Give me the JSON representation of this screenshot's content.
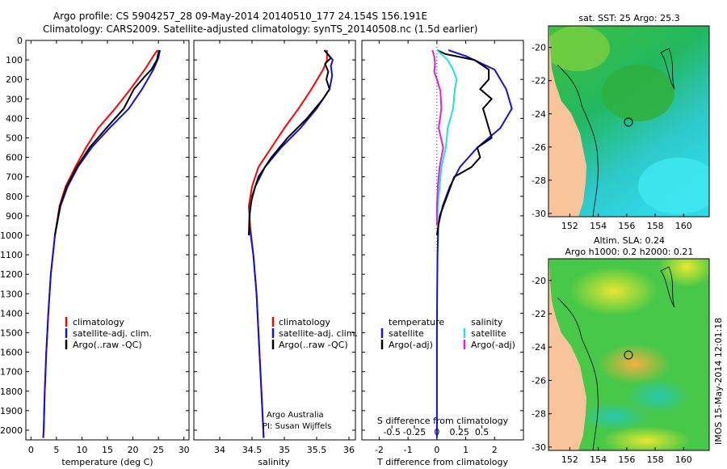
{
  "header": {
    "line1": "Argo profile: CS 5904257_28 09-May-2014 20140510_177 24.154S 156.191E",
    "line2": "Climatology: CARS2009. Satellite-adjusted climatology: synTS_20140508.nc (1.5d earlier)"
  },
  "colors": {
    "climatology": "#ff0000",
    "satellite": "#1010e0",
    "argo": "#000000",
    "argo_s": "#e020e0",
    "sat_s": "#20e0e0",
    "land": "#f9c49a"
  },
  "chart_data": [
    {
      "id": "temperature",
      "type": "line",
      "xlabel": "temperature (deg C)",
      "xlim": [
        -1,
        31
      ],
      "ylim": [
        2050,
        0
      ],
      "xticks": [
        0,
        5,
        10,
        15,
        20,
        25,
        30
      ],
      "xtick_labels": [
        "0",
        "5",
        "10",
        "15",
        "20",
        "25",
        "30"
      ],
      "yticks": [
        0,
        100,
        200,
        300,
        400,
        500,
        600,
        700,
        800,
        900,
        1000,
        1100,
        1200,
        1300,
        1400,
        1500,
        1600,
        1700,
        1800,
        1900,
        2000
      ],
      "ytick_labels": [
        "0",
        "100",
        "200",
        "300",
        "400",
        "500",
        "600",
        "700",
        "800",
        "900",
        "1000",
        "1100",
        "1200",
        "1300",
        "1400",
        "1500",
        "1600",
        "1700",
        "1800",
        "1900",
        "2000"
      ],
      "legend": [
        "climatology",
        "satellite-adj. clim.",
        "Argo(..raw -QC)"
      ],
      "series": [
        {
          "name": "climatology",
          "color": "#ff0000",
          "depth": [
            50,
            80,
            150,
            250,
            350,
            450,
            550,
            650,
            750,
            850,
            1000,
            1200,
            1400,
            1600,
            1800,
            2000,
            2040
          ],
          "value": [
            24.8,
            24.0,
            22.3,
            19.5,
            16.5,
            13.2,
            10.8,
            8.7,
            6.8,
            5.6,
            4.7,
            3.9,
            3.4,
            3.0,
            2.7,
            2.5,
            2.4
          ]
        },
        {
          "name": "satellite-adj. clim.",
          "color": "#1010e0",
          "depth": [
            50,
            90,
            150,
            250,
            350,
            450,
            550,
            650,
            750,
            850,
            1000,
            1200,
            1400,
            1600,
            1800,
            2000,
            2040
          ],
          "value": [
            25.3,
            25.0,
            24.0,
            21.8,
            19.2,
            15.4,
            11.9,
            9.2,
            7.2,
            5.8,
            4.7,
            3.9,
            3.4,
            3.0,
            2.7,
            2.5,
            2.4
          ]
        },
        {
          "name": "Argo(..raw -QC)",
          "color": "#000000",
          "depth": [
            50,
            100,
            150,
            180,
            250,
            350,
            450,
            550,
            650,
            750,
            850,
            1000
          ],
          "value": [
            25.1,
            24.7,
            23.6,
            22.5,
            20.2,
            18.2,
            14.8,
            11.5,
            9.0,
            7.0,
            5.7,
            4.7
          ]
        }
      ]
    },
    {
      "id": "salinity",
      "type": "line",
      "xlabel": "salinity",
      "xlim": [
        33.6,
        36.1
      ],
      "ylim": [
        2050,
        0
      ],
      "xticks": [
        34,
        34.5,
        35,
        35.5,
        36
      ],
      "xtick_labels": [
        "34",
        "34.5",
        "35",
        "35.5",
        "36"
      ],
      "legend": [
        "climatology",
        "satellite-adj. clim.",
        "Argo(..raw -QC)"
      ],
      "annotation": [
        "Argo Australia",
        "PI: Susan Wijffels"
      ],
      "series": [
        {
          "name": "climatology",
          "color": "#ff0000",
          "depth": [
            50,
            100,
            150,
            250,
            350,
            450,
            550,
            650,
            750,
            850,
            950,
            1100,
            1300,
            1500,
            1700,
            1900,
            2040
          ],
          "value": [
            35.66,
            35.66,
            35.6,
            35.42,
            35.22,
            35.0,
            34.8,
            34.6,
            34.5,
            34.45,
            34.47,
            34.52,
            34.57,
            34.6,
            34.63,
            34.66,
            34.68
          ]
        },
        {
          "name": "satellite-adj. clim.",
          "color": "#1010e0",
          "depth": [
            50,
            100,
            130,
            180,
            250,
            350,
            450,
            550,
            650,
            750,
            850,
            950,
            1100,
            1300,
            1500,
            1700,
            1900,
            2040
          ],
          "value": [
            35.62,
            35.75,
            35.72,
            35.74,
            35.7,
            35.5,
            35.25,
            34.95,
            34.7,
            34.55,
            34.47,
            34.46,
            34.52,
            34.57,
            34.6,
            34.63,
            34.66,
            34.68
          ]
        },
        {
          "name": "Argo(..raw -QC)",
          "color": "#000000",
          "depth": [
            50,
            90,
            120,
            160,
            200,
            250,
            300,
            400,
            500,
            600,
            700,
            800,
            900,
            1000
          ],
          "value": [
            35.62,
            35.72,
            35.63,
            35.68,
            35.65,
            35.7,
            35.6,
            35.35,
            35.05,
            34.8,
            34.6,
            34.5,
            34.46,
            34.45
          ]
        }
      ]
    },
    {
      "id": "difference",
      "type": "line",
      "xlabel": "T difference from climatology",
      "xlabel2": "S difference from climatology",
      "xlim": [
        -2.6,
        3.0
      ],
      "ylim": [
        2050,
        0
      ],
      "xticks": [
        -2,
        -1,
        0,
        1,
        2
      ],
      "xtick_labels": [
        "-2",
        "-1",
        "0",
        "1",
        "2"
      ],
      "sticks": [
        -0.5,
        -0.25,
        0,
        0.25,
        0.5
      ],
      "stick_labels": [
        "-0.5",
        "-0.25",
        "0",
        "0.25",
        "0.5"
      ],
      "legend_temperature": {
        "title": "temperature",
        "items": [
          "satellite",
          "Argo(-adj)"
        ]
      },
      "legend_salinity": {
        "title": "salinity",
        "items": [
          "satellite",
          "Argo(-adj)"
        ]
      },
      "series": [
        {
          "name": "T satellite",
          "color": "#1010e0",
          "depth": [
            50,
            80,
            150,
            250,
            350,
            450,
            550,
            650,
            750,
            850,
            950,
            1100,
            1300,
            1500,
            1700,
            1900,
            2040
          ],
          "value": [
            0.4,
            1.0,
            2.0,
            2.4,
            2.6,
            2.2,
            1.4,
            0.8,
            0.45,
            0.2,
            0.05,
            0.02,
            0.01,
            0.0,
            0.0,
            0.0,
            0.0
          ]
        },
        {
          "name": "T Argo(-adj)",
          "color": "#000000",
          "depth": [
            50,
            70,
            100,
            150,
            200,
            250,
            300,
            350,
            400,
            450,
            500,
            550,
            600,
            650,
            700,
            800,
            900,
            1000
          ],
          "value": [
            0.0,
            0.3,
            1.3,
            1.8,
            1.8,
            1.5,
            1.9,
            1.6,
            1.7,
            1.8,
            1.9,
            1.4,
            1.5,
            1.2,
            0.6,
            0.35,
            0.1,
            0.0
          ]
        },
        {
          "name": "S satellite",
          "color": "#20e0e0",
          "depth": [
            50,
            100,
            150,
            200,
            250,
            350,
            450,
            550,
            650,
            750,
            850,
            950
          ],
          "value": [
            0.0,
            0.12,
            0.18,
            0.22,
            0.2,
            0.18,
            0.12,
            0.1,
            0.05,
            0.03,
            0.01,
            0.0
          ]
        },
        {
          "name": "S Argo(-adj)",
          "color": "#e020e0",
          "depth": [
            50,
            80,
            120,
            160,
            200,
            260,
            350,
            450,
            550,
            650,
            750,
            850,
            950
          ],
          "value": [
            -0.05,
            -0.03,
            -0.02,
            -0.03,
            0.0,
            0.04,
            0.05,
            0.02,
            0.07,
            0.03,
            0.01,
            0.0,
            0.0
          ]
        }
      ]
    }
  ],
  "maps": [
    {
      "id": "sst-map",
      "title1": "sat. SST: 25 Argo: 25.3",
      "title2": "",
      "xticks": [
        152,
        154,
        156,
        158,
        160
      ],
      "yticks": [
        -20,
        -22,
        -24,
        -26,
        -28,
        -30
      ],
      "xlim": [
        150.5,
        161.8
      ],
      "ylim": [
        -30.2,
        -18.7
      ],
      "float": [
        156.19,
        -24.15
      ]
    },
    {
      "id": "sla-map",
      "title1": "Altim. SLA: 0.24",
      "title2": "Argo h1000: 0.2 h2000: 0.21",
      "xticks": [
        152,
        154,
        156,
        158,
        160
      ],
      "yticks": [
        -20,
        -22,
        -24,
        -26,
        -28,
        -30
      ],
      "xlim": [
        150.5,
        161.8
      ],
      "ylim": [
        -30.2,
        -18.7
      ],
      "float": [
        156.19,
        -24.15
      ]
    }
  ],
  "stamp": "IMOS 15-May-2014 12:01:18"
}
